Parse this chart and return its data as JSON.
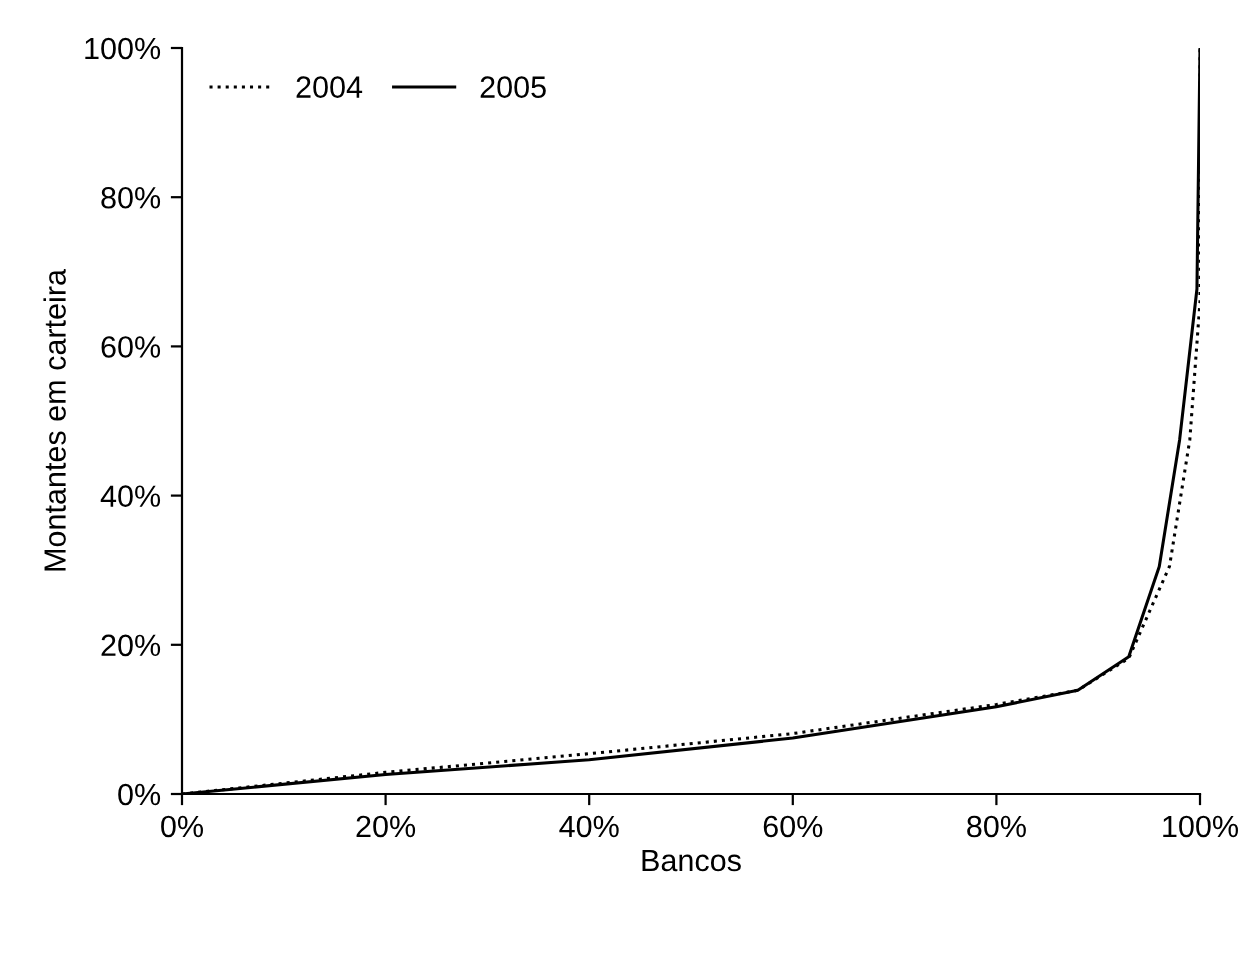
{
  "chart_data": {
    "type": "line",
    "xlabel": "Bancos",
    "ylabel": "Montantes em carteira",
    "xlim": [
      0,
      100
    ],
    "ylim": [
      0,
      100
    ],
    "xticks": [
      {
        "value": 0,
        "label": "0%"
      },
      {
        "value": 20,
        "label": "20%"
      },
      {
        "value": 40,
        "label": "40%"
      },
      {
        "value": 60,
        "label": "60%"
      },
      {
        "value": 80,
        "label": "80%"
      },
      {
        "value": 100,
        "label": "100%"
      }
    ],
    "yticks": [
      {
        "value": 0,
        "label": "0%"
      },
      {
        "value": 20,
        "label": "20%"
      },
      {
        "value": 40,
        "label": "40%"
      },
      {
        "value": 60,
        "label": "60%"
      },
      {
        "value": 80,
        "label": "80%"
      },
      {
        "value": 100,
        "label": "100%"
      }
    ],
    "legend": "top left",
    "grid": false,
    "series": [
      {
        "name": "2004",
        "color": "#000000",
        "line_style": "dotted",
        "x": [
          0,
          20,
          40,
          60,
          80,
          88,
          93,
          97,
          99,
          100,
          100
        ],
        "values": [
          0,
          2.9,
          5.4,
          8.1,
          12,
          13.9,
          18.2,
          30.5,
          47.5,
          66,
          100
        ]
      },
      {
        "name": "2005",
        "color": "#000000",
        "line_style": "solid",
        "x": [
          0,
          20,
          40,
          60,
          80,
          88,
          93,
          96,
          98,
          99.7,
          100
        ],
        "values": [
          0,
          2.6,
          4.6,
          7.5,
          11.7,
          13.9,
          18.4,
          30.5,
          47.5,
          67.7,
          100
        ]
      }
    ]
  }
}
